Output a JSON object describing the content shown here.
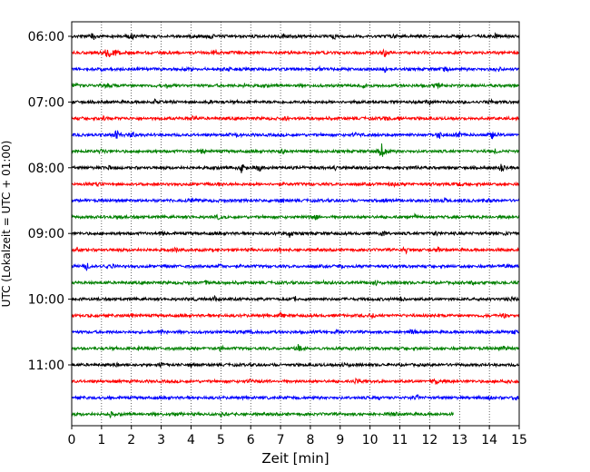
{
  "chart_data": {
    "type": "line",
    "title": "",
    "xlabel": "Zeit  [min]",
    "ylabel": "UTC (Lokalzeit = UTC + 01:00)",
    "xlim": [
      0,
      15
    ],
    "x_ticks": [
      "0",
      "1",
      "2",
      "3",
      "4",
      "5",
      "6",
      "7",
      "8",
      "9",
      "10",
      "11",
      "12",
      "13",
      "14",
      "15"
    ],
    "y_tick_labels": [
      "06:00",
      "07:00",
      "08:00",
      "09:00",
      "10:00",
      "11:00"
    ],
    "trace_interval_min": 15,
    "grid": "vertical dotted",
    "colors": [
      "#000000",
      "#ff0000",
      "#0000ff",
      "#008000"
    ],
    "series": [
      {
        "start": "06:00",
        "color": "#000000",
        "events": [
          [
            0.7,
            2.5
          ],
          [
            2.0,
            1.8
          ],
          [
            4.7,
            1.2
          ],
          [
            7.1,
            1.3
          ],
          [
            8.8,
            1.2
          ],
          [
            10.8,
            1.3
          ],
          [
            13.0,
            1.4
          ],
          [
            14.2,
            1.5
          ]
        ]
      },
      {
        "start": "06:15",
        "color": "#ff0000",
        "events": [
          [
            1.2,
            4.5
          ],
          [
            1.5,
            3.0
          ],
          [
            10.5,
            2.5
          ],
          [
            4.8,
            1.2
          ]
        ]
      },
      {
        "start": "06:30",
        "color": "#0000ff",
        "events": [
          [
            1.0,
            1.2
          ],
          [
            5.3,
            1.4
          ],
          [
            8.3,
            1.2
          ],
          [
            10.5,
            1.3
          ],
          [
            12.5,
            1.2
          ],
          [
            14.3,
            1.3
          ]
        ]
      },
      {
        "start": "06:45",
        "color": "#008000",
        "events": [
          [
            0.1,
            2.0
          ],
          [
            1.2,
            1.2
          ],
          [
            3.2,
            1.2
          ],
          [
            5.8,
            1.1
          ],
          [
            9.8,
            1.4
          ],
          [
            12.3,
            1.2
          ]
        ]
      },
      {
        "start": "07:00",
        "color": "#000000",
        "events": [
          [
            4.7,
            2.0
          ],
          [
            2.8,
            1.2
          ],
          [
            9.6,
            1.2
          ],
          [
            12.0,
            1.1
          ],
          [
            14.0,
            1.2
          ]
        ]
      },
      {
        "start": "07:15",
        "color": "#ff0000",
        "events": [
          [
            4.1,
            1.4
          ],
          [
            7.2,
            1.6
          ],
          [
            10.6,
            1.5
          ],
          [
            11.0,
            1.4
          ],
          [
            1.1,
            1.1
          ]
        ]
      },
      {
        "start": "07:30",
        "color": "#0000ff",
        "events": [
          [
            1.5,
            4.0
          ],
          [
            2.0,
            3.0
          ],
          [
            12.3,
            3.2
          ],
          [
            14.1,
            4.2
          ],
          [
            13.0,
            1.8
          ],
          [
            5.5,
            1.3
          ],
          [
            9.5,
            1.3
          ]
        ]
      },
      {
        "start": "07:45",
        "color": "#008000",
        "events": [
          [
            10.4,
            5.0
          ],
          [
            4.4,
            1.3
          ],
          [
            7.1,
            1.3
          ],
          [
            1.0,
            1.2
          ],
          [
            14.2,
            1.2
          ]
        ]
      },
      {
        "start": "08:00",
        "color": "#000000",
        "events": [
          [
            5.7,
            3.2
          ],
          [
            6.3,
            2.4
          ],
          [
            14.4,
            2.2
          ],
          [
            1.2,
            1.3
          ],
          [
            11.5,
            1.4
          ],
          [
            8.8,
            1.3
          ]
        ]
      },
      {
        "start": "08:15",
        "color": "#ff0000",
        "events": [
          [
            0.8,
            1.8
          ],
          [
            4.9,
            1.2
          ],
          [
            10.8,
            1.2
          ],
          [
            13.0,
            1.1
          ]
        ]
      },
      {
        "start": "08:30",
        "color": "#0000ff",
        "events": [
          [
            4.0,
            1.3
          ],
          [
            7.0,
            1.3
          ],
          [
            10.5,
            1.2
          ],
          [
            12.5,
            1.2
          ],
          [
            14.0,
            1.3
          ]
        ]
      },
      {
        "start": "08:45",
        "color": "#008000",
        "events": [
          [
            1.5,
            1.2
          ],
          [
            4.9,
            1.3
          ],
          [
            8.2,
            1.6
          ],
          [
            11.5,
            1.2
          ]
        ]
      },
      {
        "start": "09:00",
        "color": "#000000",
        "events": [
          [
            7.3,
            2.2
          ],
          [
            10.4,
            2.0
          ],
          [
            12.2,
            1.3
          ],
          [
            14.5,
            1.2
          ],
          [
            3.0,
            1.1
          ]
        ]
      },
      {
        "start": "09:15",
        "color": "#ff0000",
        "events": [
          [
            0.2,
            1.2
          ],
          [
            3.5,
            1.3
          ],
          [
            7.0,
            1.3
          ],
          [
            11.2,
            1.6
          ],
          [
            12.3,
            1.4
          ]
        ]
      },
      {
        "start": "09:30",
        "color": "#0000ff",
        "events": [
          [
            0.5,
            2.0
          ],
          [
            1.3,
            1.5
          ],
          [
            5.0,
            1.2
          ],
          [
            9.0,
            1.2
          ],
          [
            14.5,
            1.2
          ]
        ]
      },
      {
        "start": "09:45",
        "color": "#008000",
        "events": [
          [
            4.5,
            1.2
          ],
          [
            8.5,
            1.4
          ],
          [
            10.2,
            1.2
          ],
          [
            13.4,
            1.3
          ]
        ]
      },
      {
        "start": "10:00",
        "color": "#000000",
        "events": [
          [
            4.8,
            1.4
          ],
          [
            7.5,
            1.3
          ],
          [
            11.0,
            1.2
          ],
          [
            14.8,
            1.3
          ]
        ]
      },
      {
        "start": "10:15",
        "color": "#ff0000",
        "events": [
          [
            2.0,
            1.2
          ],
          [
            7.0,
            1.2
          ],
          [
            10.1,
            1.3
          ],
          [
            14.5,
            1.2
          ]
        ]
      },
      {
        "start": "10:30",
        "color": "#0000ff",
        "events": [
          [
            3.0,
            1.2
          ],
          [
            6.0,
            1.2
          ],
          [
            8.9,
            1.2
          ],
          [
            11.4,
            1.2
          ],
          [
            14.8,
            1.3
          ]
        ]
      },
      {
        "start": "10:45",
        "color": "#008000",
        "events": [
          [
            2.3,
            1.6
          ],
          [
            5.0,
            1.4
          ],
          [
            7.6,
            2.2
          ],
          [
            9.5,
            1.3
          ],
          [
            14.5,
            1.5
          ]
        ]
      },
      {
        "start": "11:00",
        "color": "#000000",
        "events": [
          [
            1.5,
            1.3
          ],
          [
            3.0,
            1.8
          ],
          [
            4.0,
            1.5
          ],
          [
            9.2,
            1.2
          ]
        ]
      },
      {
        "start": "11:15",
        "color": "#ff0000",
        "events": [
          [
            6.0,
            1.2
          ],
          [
            9.5,
            1.2
          ],
          [
            12.2,
            1.6
          ],
          [
            14.5,
            1.3
          ]
        ]
      },
      {
        "start": "11:30",
        "color": "#0000ff",
        "events": [
          [
            10.3,
            1.6
          ],
          [
            11.6,
            1.3
          ],
          [
            14.0,
            1.3
          ],
          [
            14.9,
            1.6
          ]
        ]
      },
      {
        "start": "11:45",
        "color": "#008000",
        "end_min": 12.8,
        "events": [
          [
            1.3,
            1.4
          ],
          [
            3.5,
            1.2
          ],
          [
            5.0,
            1.2
          ],
          [
            10.8,
            1.2
          ]
        ]
      }
    ]
  }
}
